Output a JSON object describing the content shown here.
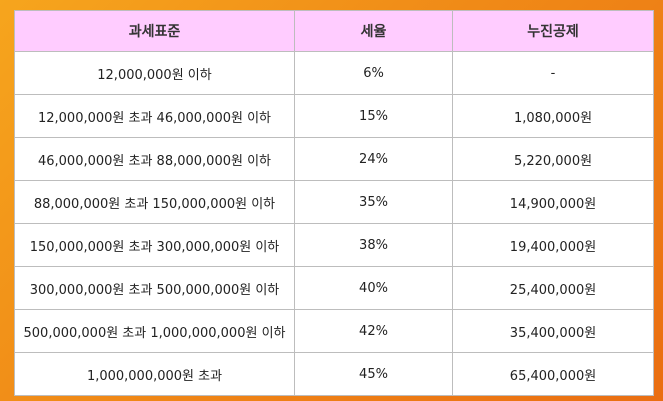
{
  "table": {
    "headers": [
      "과세표준",
      "세율",
      "누진공제"
    ],
    "rows": [
      [
        "12,000,000원 이하",
        "6%",
        "-"
      ],
      [
        "12,000,000원 초과 46,000,000원 이하",
        "15%",
        "1,080,000원"
      ],
      [
        "46,000,000원 초과 88,000,000원 이하",
        "24%",
        "5,220,000원"
      ],
      [
        "88,000,000원 초과 150,000,000원 이하",
        "35%",
        "14,900,000원"
      ],
      [
        "150,000,000원 초과 300,000,000원 이하",
        "38%",
        "19,400,000원"
      ],
      [
        "300,000,000원 초과 500,000,000원 이하",
        "40%",
        "25,400,000원"
      ],
      [
        "500,000,000원 초과 1,000,000,000원 이하",
        "42%",
        "35,400,000원"
      ],
      [
        "1,000,000,000원 초과",
        "45%",
        "65,400,000원"
      ]
    ]
  },
  "colors": {
    "header_bg": "#ffccff",
    "background_orange": "#f08a17",
    "border": "#bdbdbd"
  }
}
